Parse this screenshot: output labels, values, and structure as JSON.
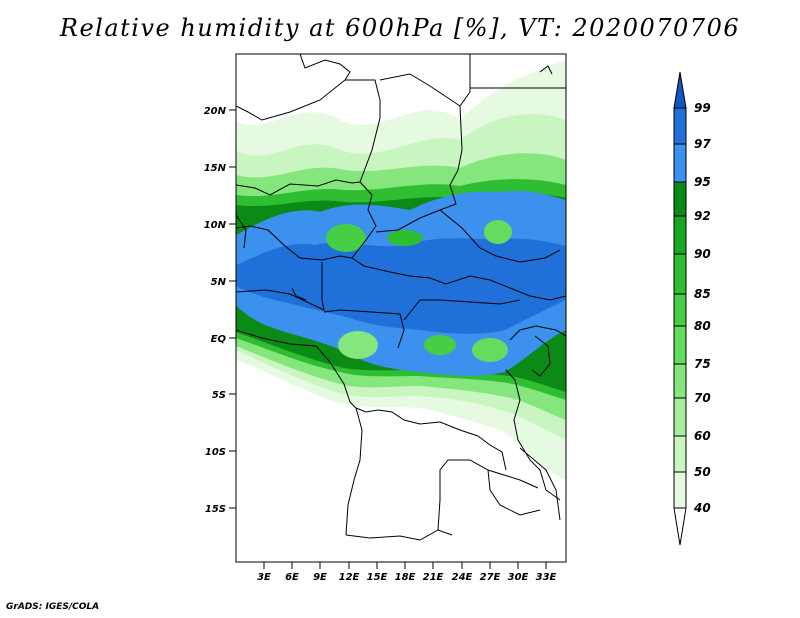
{
  "title": "Relative humidity at 600hPa [%], VT: 2020070706",
  "credit": "GrADS: IGES/COLA",
  "map": {
    "lat_ticks": [
      "20N",
      "15N",
      "10N",
      "5N",
      "EQ",
      "5S",
      "10S",
      "15S"
    ],
    "lon_ticks": [
      "3E",
      "6E",
      "9E",
      "12E",
      "15E",
      "18E",
      "21E",
      "24E",
      "27E",
      "30E",
      "33E"
    ]
  },
  "colorbar": {
    "levels": [
      "40",
      "50",
      "60",
      "70",
      "75",
      "80",
      "85",
      "90",
      "92",
      "95",
      "97",
      "99"
    ],
    "colors": [
      "#ffffff",
      "#e6fae2",
      "#c8f5c0",
      "#a6ee9c",
      "#84e67c",
      "#64dc5e",
      "#46cf44",
      "#2fbe32",
      "#18a720",
      "#0c8a16",
      "#3c90ee",
      "#1f70d8",
      "#1057bf"
    ]
  }
}
